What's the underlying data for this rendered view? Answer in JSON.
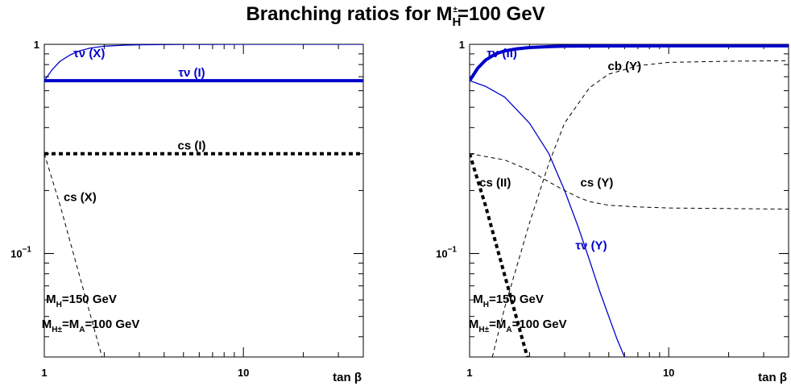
{
  "title": {
    "prefix": "Branching ratios for M",
    "sub": "H",
    "sup": "±",
    "suffix": "=100 GeV"
  },
  "colors": {
    "blue": "#0000cc",
    "black": "#000000"
  },
  "chart_data": [
    {
      "type": "line",
      "panel": "left",
      "xlabel": "tan β",
      "x_scale": "log",
      "y_scale": "log",
      "xlim": [
        1,
        40
      ],
      "ylim": [
        0.032,
        1
      ],
      "x_ticks": [
        {
          "v": 1,
          "label": "1"
        },
        {
          "v": 10,
          "label": "10"
        }
      ],
      "y_ticks": [
        {
          "v": 1,
          "label": "1"
        },
        {
          "v": 0.1,
          "label": "10^-1"
        }
      ],
      "series": [
        {
          "name": "τν (X)",
          "color": "#0000cc",
          "width": 1.3,
          "dash": "",
          "x": [
            1,
            1.1,
            1.2,
            1.35,
            1.5,
            1.7,
            2,
            2.5,
            3,
            5,
            10,
            40
          ],
          "y": [
            0.67,
            0.76,
            0.83,
            0.89,
            0.93,
            0.96,
            0.98,
            0.99,
            0.995,
            0.999,
            1,
            1
          ]
        },
        {
          "name": "τν (I)",
          "color": "#0000cc",
          "width": 4,
          "dash": "",
          "x": [
            1,
            40
          ],
          "y": [
            0.67,
            0.67
          ]
        },
        {
          "name": "cs (I)",
          "color": "#000000",
          "width": 4,
          "dash": "5,4",
          "x": [
            1,
            40
          ],
          "y": [
            0.3,
            0.3
          ]
        },
        {
          "name": "cs (X)",
          "color": "#000000",
          "width": 1,
          "dash": "5,4",
          "x": [
            1,
            1.2,
            1.4,
            1.6,
            1.8,
            1.95
          ],
          "y": [
            0.3,
            0.17,
            0.1,
            0.063,
            0.042,
            0.032
          ]
        }
      ],
      "annotations": [
        {
          "text": "τν (X)",
          "x": 1.4,
          "y": 0.83,
          "color": "#0000cc",
          "anchor": "start"
        },
        {
          "text": "τν (I)",
          "x": 5.5,
          "y": 0.67,
          "color": "#0000cc",
          "anchor": "middle"
        },
        {
          "text": "cs (I)",
          "x": 5.5,
          "y": 0.3,
          "color": "#000000",
          "anchor": "middle"
        },
        {
          "text": "cs (X)",
          "x": 1.25,
          "y": 0.17,
          "color": "#000000",
          "anchor": "start"
        }
      ],
      "mass_labels": [
        {
          "main": "M",
          "sub": "H",
          "rest": "=150 GeV",
          "x": 1.02,
          "y": 0.058
        },
        {
          "main": "M",
          "sub": "H±",
          "rest": "=M",
          "sub2": "A",
          "rest2": "=100 GeV",
          "x": 0.97,
          "y": 0.044
        }
      ]
    },
    {
      "type": "line",
      "panel": "right",
      "xlabel": "tan β",
      "x_scale": "log",
      "y_scale": "log",
      "xlim": [
        1,
        40
      ],
      "ylim": [
        0.032,
        1
      ],
      "x_ticks": [
        {
          "v": 1,
          "label": "1"
        },
        {
          "v": 10,
          "label": "10"
        }
      ],
      "y_ticks": [
        {
          "v": 1,
          "label": "1"
        },
        {
          "v": 0.1,
          "label": "10^-1"
        }
      ],
      "series": [
        {
          "name": "τν (II)",
          "color": "#0000cc",
          "width": 4,
          "dash": "",
          "x": [
            1,
            1.1,
            1.2,
            1.35,
            1.5,
            1.7,
            2,
            2.5,
            3,
            5,
            10,
            40
          ],
          "y": [
            0.67,
            0.77,
            0.84,
            0.9,
            0.93,
            0.95,
            0.965,
            0.975,
            0.98,
            0.982,
            0.983,
            0.983
          ]
        },
        {
          "name": "τν (Y)",
          "color": "#0000cc",
          "width": 1.3,
          "dash": "",
          "x": [
            1,
            1.2,
            1.5,
            2,
            2.5,
            3,
            3.5,
            4,
            4.5,
            5,
            5.5,
            6
          ],
          "y": [
            0.67,
            0.63,
            0.56,
            0.42,
            0.3,
            0.2,
            0.135,
            0.093,
            0.066,
            0.05,
            0.039,
            0.032
          ]
        },
        {
          "name": "cb (Y)",
          "color": "#000000",
          "width": 1,
          "dash": "5,4",
          "x": [
            1.3,
            1.5,
            2,
            2.5,
            3,
            4,
            5,
            7,
            10,
            20,
            40
          ],
          "y": [
            0.032,
            0.055,
            0.14,
            0.27,
            0.42,
            0.62,
            0.72,
            0.79,
            0.82,
            0.83,
            0.835
          ]
        },
        {
          "name": "cs (Y)",
          "color": "#000000",
          "width": 1,
          "dash": "5,4",
          "x": [
            1,
            1.5,
            2,
            2.5,
            3,
            3.5,
            4,
            5,
            7,
            10,
            20,
            40
          ],
          "y": [
            0.3,
            0.28,
            0.25,
            0.22,
            0.2,
            0.186,
            0.177,
            0.17,
            0.167,
            0.165,
            0.164,
            0.163
          ]
        },
        {
          "name": "cs (II)",
          "color": "#000000",
          "width": 4,
          "dash": "5,4",
          "x": [
            1,
            1.2,
            1.4,
            1.6,
            1.8,
            1.95
          ],
          "y": [
            0.3,
            0.17,
            0.1,
            0.063,
            0.042,
            0.032
          ]
        }
      ],
      "annotations": [
        {
          "text": "τν (II)",
          "x": 1.22,
          "y": 0.83,
          "color": "#0000cc",
          "anchor": "start"
        },
        {
          "text": "cb (Y)",
          "x": 6,
          "y": 0.72,
          "color": "#000000",
          "anchor": "middle"
        },
        {
          "text": "cs (Y)",
          "x": 3.6,
          "y": 0.2,
          "color": "#000000",
          "anchor": "start"
        },
        {
          "text": "cs (II)",
          "x": 1.12,
          "y": 0.2,
          "color": "#000000",
          "anchor": "start"
        },
        {
          "text": "τν (Y)",
          "x": 3.4,
          "y": 0.1,
          "color": "#0000cc",
          "anchor": "start"
        }
      ],
      "mass_labels": [
        {
          "main": "M",
          "sub": "H",
          "rest": "=150 GeV",
          "x": 1.04,
          "y": 0.058
        },
        {
          "main": "M",
          "sub": "H±",
          "rest": "=M",
          "sub2": "A",
          "rest2": "=100 GeV",
          "x": 0.99,
          "y": 0.044
        }
      ]
    }
  ]
}
